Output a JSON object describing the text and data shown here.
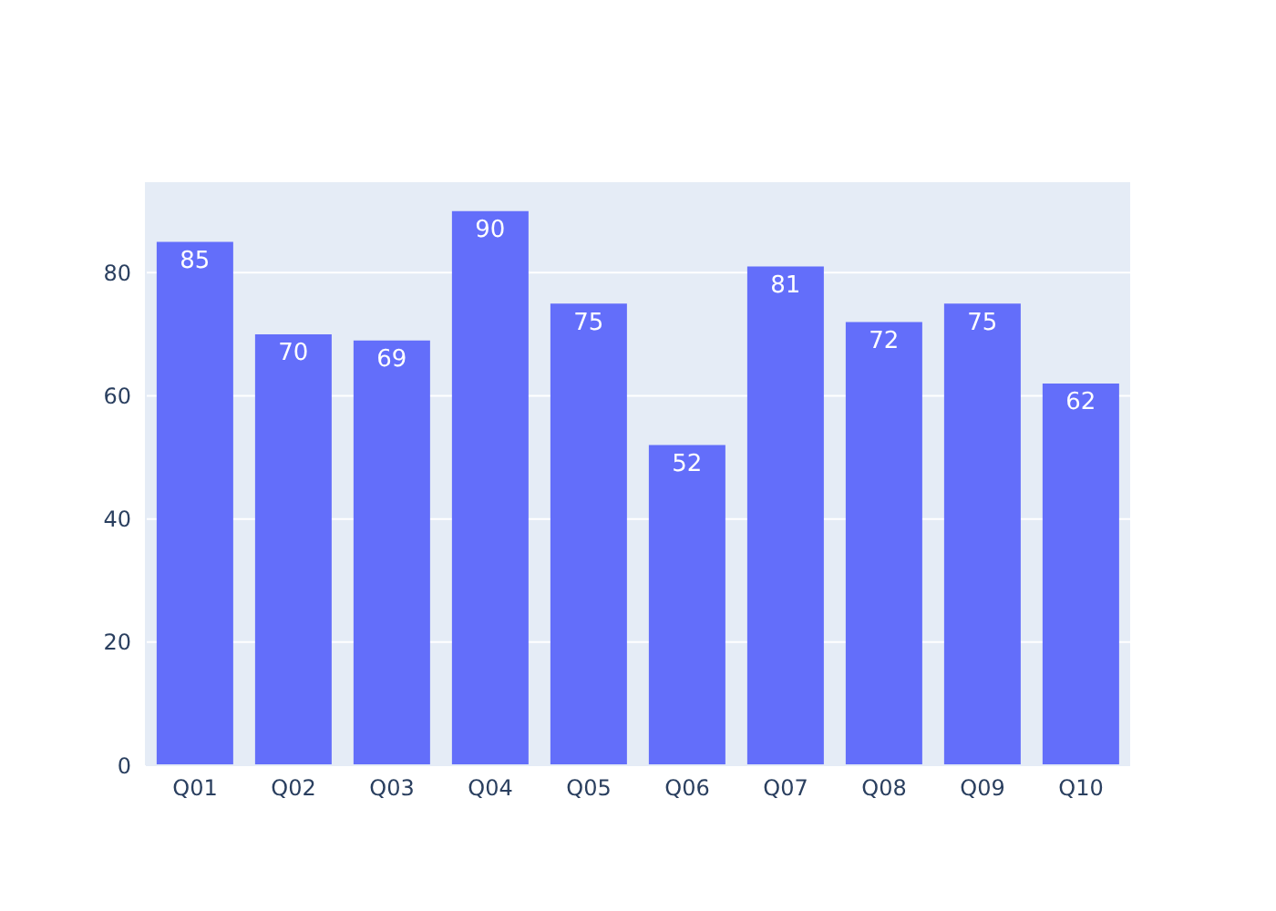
{
  "chart_data": {
    "type": "bar",
    "categories": [
      "Q01",
      "Q02",
      "Q03",
      "Q04",
      "Q05",
      "Q06",
      "Q07",
      "Q08",
      "Q09",
      "Q10"
    ],
    "values": [
      85,
      70,
      69,
      90,
      75,
      52,
      81,
      72,
      75,
      62
    ],
    "color": "#636efa",
    "ylim": [
      0,
      94.7
    ],
    "yticks": [
      0,
      20,
      40,
      60,
      80
    ],
    "grid": "y",
    "data_labels": true
  }
}
